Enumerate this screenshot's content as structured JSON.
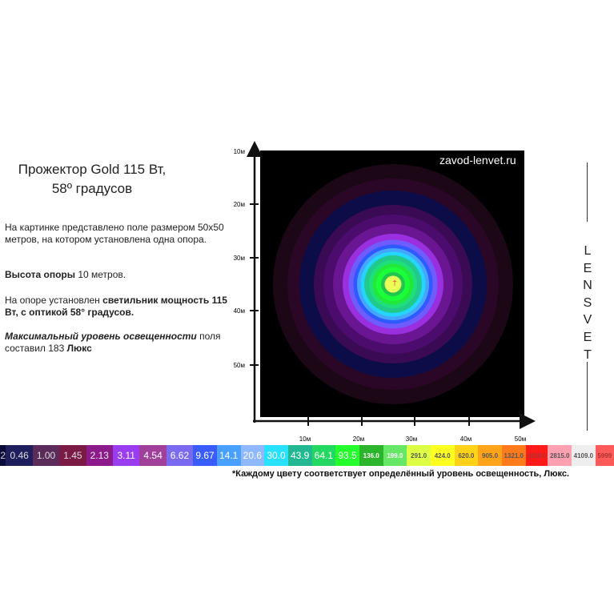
{
  "title": {
    "line1": "Прожектор Gold 115 Вт,",
    "line2": "58º градусов"
  },
  "description": {
    "p1": "На картинке представлено поле размером 50х50 метров, на котором установлена  одна опора.",
    "p2_bold": "Высота опоры",
    "p2_rest": " 10 метров.",
    "p3_start": "На опоре установлен ",
    "p3_bold": " светильник мощность 115 Вт, с оптикой 58° градусов.",
    "p4_bold_italic": "Максимальный уровень освещенности",
    "p4_rest": " поля  составил 183 ",
    "p4_bold_end": "Люкс"
  },
  "watermark": "zavod-lenvet.ru",
  "brand_letters": [
    "L",
    "E",
    "N",
    "S",
    "V",
    "E",
    "T"
  ],
  "axis": {
    "x_ticks": [
      "10м",
      "20м",
      "30м",
      "40м",
      "50м"
    ],
    "y_ticks": [
      "10м",
      "20м",
      "30м",
      "40м",
      "50м"
    ]
  },
  "plot_center_mark": "†",
  "rings": [
    {
      "r": 0.5,
      "color": "#1c0716"
    },
    {
      "r": 0.44,
      "color": "#2a0726"
    },
    {
      "r": 0.39,
      "color": "#0c0c48"
    },
    {
      "r": 0.33,
      "color": "#3a0a55"
    },
    {
      "r": 0.29,
      "color": "#4c0c6e"
    },
    {
      "r": 0.25,
      "color": "#6a1693"
    },
    {
      "r": 0.21,
      "color": "#9a2fe0"
    },
    {
      "r": 0.185,
      "color": "#6f5cff"
    },
    {
      "r": 0.165,
      "color": "#2f5aff"
    },
    {
      "r": 0.15,
      "color": "#46a6ff"
    },
    {
      "r": 0.135,
      "color": "#23d5ff"
    },
    {
      "r": 0.12,
      "color": "#21c98c"
    },
    {
      "r": 0.1,
      "color": "#1de07a"
    },
    {
      "r": 0.085,
      "color": "#22e83a"
    },
    {
      "r": 0.07,
      "color": "#1aff3a"
    },
    {
      "r": 0.05,
      "color": "#22c64e"
    },
    {
      "r": 0.035,
      "color": "#e8ff5a"
    }
  ],
  "colorbar": [
    {
      "label": "2",
      "color": "#0b0b3a",
      "text": "#cccccc",
      "size": "big",
      "w": 8
    },
    {
      "label": "0.46",
      "color": "#1f1f5e",
      "text": "#dddddd",
      "size": "big",
      "w": 36
    },
    {
      "label": "1.00",
      "color": "#5b2b5a",
      "text": "#dddddd",
      "size": "big",
      "w": 36
    },
    {
      "label": "1.45",
      "color": "#7a1a45",
      "text": "#dddddd",
      "size": "big",
      "w": 36
    },
    {
      "label": "2.13",
      "color": "#8c1a8a",
      "text": "#eeeeee",
      "size": "big",
      "w": 36
    },
    {
      "label": "3.11",
      "color": "#9a3cf0",
      "text": "#ffffff",
      "size": "big",
      "w": 36
    },
    {
      "label": "4.54",
      "color": "#a0409a",
      "text": "#ffffff",
      "size": "big",
      "w": 36
    },
    {
      "label": "6.62",
      "color": "#7a6af0",
      "text": "#ffffff",
      "size": "big",
      "w": 36
    },
    {
      "label": "9.67",
      "color": "#3a5cff",
      "text": "#ffffff",
      "size": "big",
      "w": 32
    },
    {
      "label": "14.1",
      "color": "#4aa0ff",
      "text": "#ffffff",
      "size": "big",
      "w": 32
    },
    {
      "label": "20.6",
      "color": "#8fb8ff",
      "text": "#ffffff",
      "size": "big",
      "w": 32
    },
    {
      "label": "30.0",
      "color": "#28e0ff",
      "text": "#ffffff",
      "size": "big",
      "w": 32
    },
    {
      "label": "43.9",
      "color": "#22b891",
      "text": "#ffffff",
      "size": "big",
      "w": 32
    },
    {
      "label": "64.1",
      "color": "#22d860",
      "text": "#ffffff",
      "size": "big",
      "w": 32
    },
    {
      "label": "93.5",
      "color": "#22ff2a",
      "text": "#ffffff",
      "size": "big",
      "w": 32
    },
    {
      "label": "136.0",
      "color": "#2cb42c",
      "text": "#ffffff",
      "size": "small",
      "w": 32
    },
    {
      "label": "199.0",
      "color": "#66e866",
      "text": "#ffffff",
      "size": "small",
      "w": 32
    },
    {
      "label": "291.0",
      "color": "#ddff44",
      "text": "#555555",
      "size": "small",
      "w": 32
    },
    {
      "label": "424.0",
      "color": "#ffff22",
      "text": "#555555",
      "size": "small",
      "w": 32
    },
    {
      "label": "620.0",
      "color": "#ffd21a",
      "text": "#555555",
      "size": "small",
      "w": 32
    },
    {
      "label": "905.0",
      "color": "#ffa41a",
      "text": "#555555",
      "size": "small",
      "w": 32
    },
    {
      "label": "1321.0",
      "color": "#ff7a1a",
      "text": "#555555",
      "size": "small",
      "w": 32
    },
    {
      "label": "1928.0",
      "color": "#ff1a1a",
      "text": "#aa3333",
      "size": "small",
      "w": 30
    },
    {
      "label": "2815.0",
      "color": "#ffa0b0",
      "text": "#555555",
      "size": "small",
      "w": 32
    },
    {
      "label": "4109.0",
      "color": "#eeeeee",
      "text": "#555555",
      "size": "small",
      "w": 32
    },
    {
      "label": "5999",
      "color": "#ff5a5a",
      "text": "#aa3333",
      "size": "small",
      "w": 25
    }
  ],
  "footnote": "*Каждому цвету соответствует  определённый уровень освещенность, Люкс."
}
